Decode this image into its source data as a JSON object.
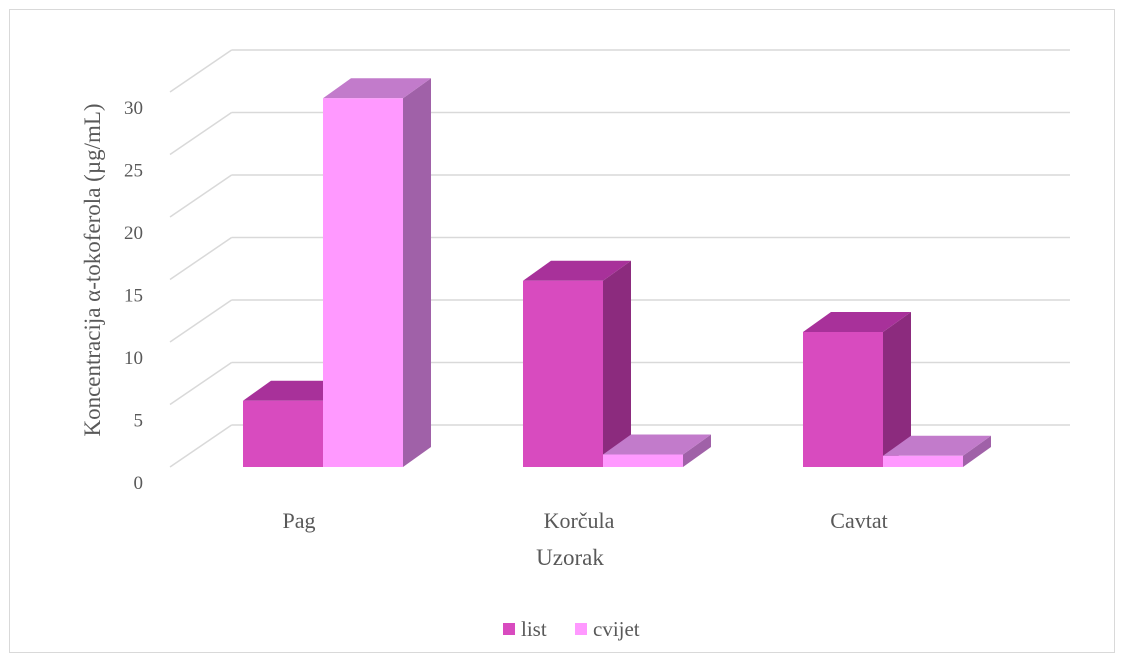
{
  "chart_data": {
    "type": "bar",
    "style": "3d-clustered-column",
    "categories": [
      "Pag",
      "Korčula",
      "Cavtat"
    ],
    "series": [
      {
        "name": "list",
        "values": [
          5.3,
          14.9,
          10.8
        ],
        "color": "#d84bbf",
        "top_color": "#a8319a",
        "side_color": "#8c2b7e"
      },
      {
        "name": "cvijet",
        "values": [
          29.5,
          1.0,
          0.9
        ],
        "color": "#ff99ff",
        "top_color": "#c27bcb",
        "side_color": "#a061a8"
      }
    ],
    "title": "",
    "xlabel": "Uzorak",
    "ylabel": "Koncentracija α-tokoferola (µg/mL)",
    "ylim": [
      0,
      30
    ],
    "yticks": [
      0,
      5,
      10,
      15,
      20,
      25,
      30
    ],
    "grid": true,
    "legend": "bottom"
  }
}
